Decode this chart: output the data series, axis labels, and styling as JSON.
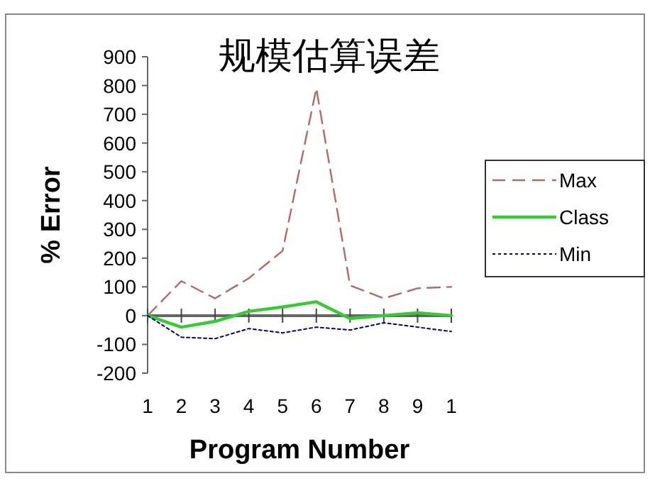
{
  "chart_data": {
    "type": "line",
    "title": "规模估算误差",
    "xlabel": "Program Number",
    "ylabel": "% Error",
    "categories": [
      "1",
      "2",
      "3",
      "4",
      "5",
      "6",
      "7",
      "8",
      "9",
      "1"
    ],
    "series": [
      {
        "name": "Max",
        "color": "#b06a6a",
        "line_style": "dashed",
        "values": [
          0,
          120,
          60,
          130,
          225,
          790,
          105,
          60,
          95,
          100
        ]
      },
      {
        "name": "Class",
        "color": "#33cc33",
        "line_style": "solid",
        "values": [
          0,
          -40,
          -20,
          15,
          30,
          48,
          -10,
          0,
          10,
          0
        ]
      },
      {
        "name": "Min",
        "color": "#000080",
        "line_style": "dotted",
        "values": [
          0,
          -75,
          -80,
          -45,
          -60,
          -40,
          -50,
          -25,
          -40,
          -55
        ]
      }
    ],
    "ylim": [
      -200,
      900
    ],
    "yticks": [
      -200,
      -100,
      0,
      100,
      200,
      300,
      400,
      500,
      600,
      700,
      800,
      900
    ],
    "legend": "right",
    "marker": "none"
  }
}
